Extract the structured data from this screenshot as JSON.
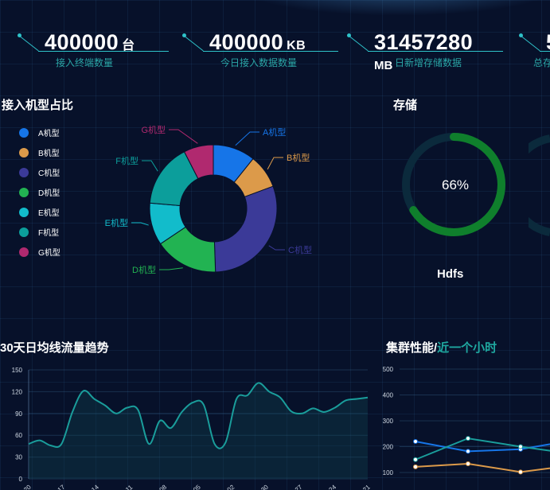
{
  "stats": [
    {
      "value": "400000",
      "unit": "台",
      "label": "接入终端数量"
    },
    {
      "value": "400000",
      "unit": "KB",
      "label": "今日接入数据数量"
    },
    {
      "value": "31457280",
      "unit": "MB",
      "label": "日新增存储数据"
    },
    {
      "value": "5",
      "unit": "",
      "label": "总存"
    }
  ],
  "model_panel": {
    "title": "接入机型占比",
    "legend": [
      {
        "label": "A机型",
        "color": "#1675e8"
      },
      {
        "label": "B机型",
        "color": "#dc9a4a"
      },
      {
        "label": "C机型",
        "color": "#3b3a98"
      },
      {
        "label": "D机型",
        "color": "#22b352"
      },
      {
        "label": "E机型",
        "color": "#12bccb"
      },
      {
        "label": "F机型",
        "color": "#0c9e9b"
      },
      {
        "label": "G机型",
        "color": "#b0296f"
      }
    ]
  },
  "storage_panel": {
    "title": "存储",
    "percent_label": "66%",
    "percent": 0.66,
    "subtitle": "Hdfs",
    "ring_color": "#0f7f2c",
    "track_color": "#0b2a3c"
  },
  "trend_panel": {
    "title": "30天日均线流量趋势"
  },
  "cluster_panel": {
    "title": "集群性能/",
    "title_accent": "近一个小时"
  },
  "chart_data": [
    {
      "type": "pie",
      "categories": [
        "A机型",
        "B机型",
        "C机型",
        "D机型",
        "E机型",
        "F机型",
        "G机型"
      ],
      "values": [
        10,
        8,
        28,
        15,
        10,
        15,
        7
      ],
      "colors": [
        "#1675e8",
        "#dc9a4a",
        "#3b3a98",
        "#22b352",
        "#12bccb",
        "#0c9e9b",
        "#b0296f"
      ],
      "donut": true
    },
    {
      "type": "area",
      "ylim": [
        0,
        150
      ],
      "yticks": [
        0,
        30,
        60,
        90,
        120,
        150
      ],
      "xtick_labels": [
        "20",
        "17",
        "14",
        "11",
        "08",
        "05",
        "02",
        "30",
        "27",
        "24",
        "21"
      ],
      "values": [
        48,
        53,
        46,
        48,
        92,
        121,
        110,
        101,
        90,
        98,
        95,
        48,
        80,
        70,
        92,
        105,
        102,
        48,
        50,
        110,
        115,
        132,
        120,
        112,
        93,
        90,
        97,
        92,
        98,
        108,
        110,
        112
      ],
      "line_color": "#1a9d9b",
      "grid": true
    },
    {
      "type": "line",
      "ylim": [
        100,
        500
      ],
      "yticks": [
        100,
        200,
        300,
        400,
        500
      ],
      "series": [
        {
          "color": "#1675e8",
          "values": [
            220,
            182,
            190,
            225
          ]
        },
        {
          "color": "#1a9d9b",
          "values": [
            150,
            232,
            200,
            172
          ]
        },
        {
          "color": "#dc9a4a",
          "values": [
            122,
            134,
            102,
            128
          ]
        }
      ]
    }
  ]
}
